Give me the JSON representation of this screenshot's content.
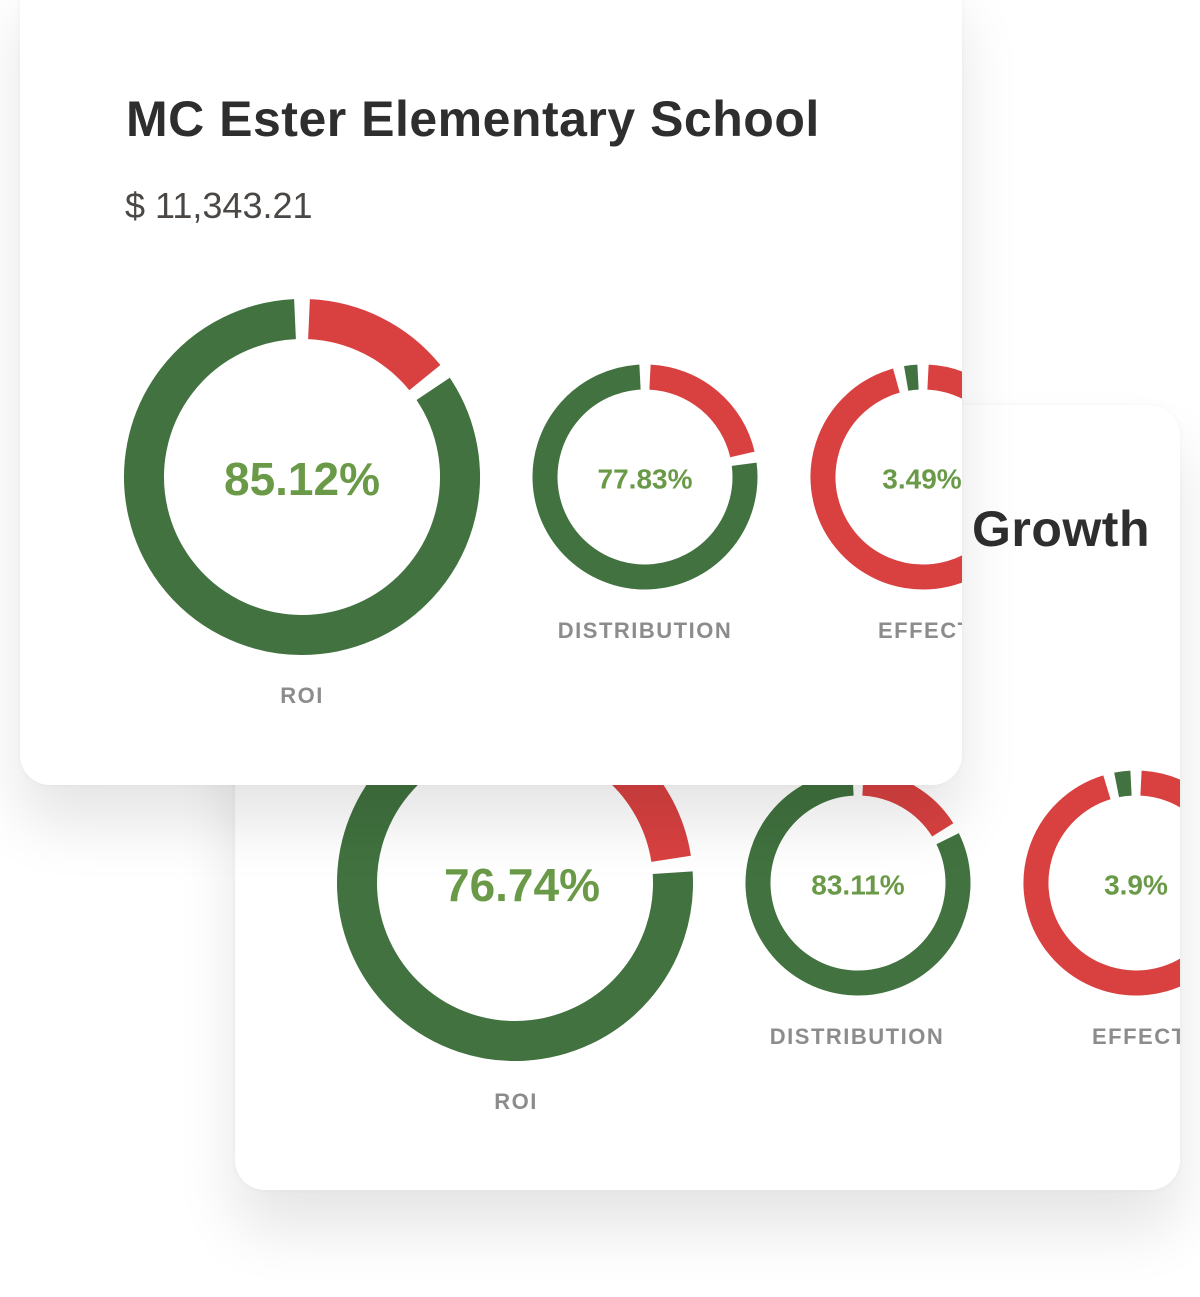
{
  "colors": {
    "good": "#41723f",
    "rest": "#d94141",
    "value_text": "#6a9a48",
    "label": "#8c8c8c"
  },
  "front_card": {
    "title": "MC Ester Elementary School",
    "amount": "$ 11,343.21",
    "metrics": [
      {
        "label": "ROI",
        "value": 85.12,
        "display": "85.12%"
      },
      {
        "label": "DISTRIBUTION",
        "value": 77.83,
        "display": "77.83%"
      },
      {
        "label": "EFFECT",
        "value": 3.49,
        "display": "3.49%"
      }
    ]
  },
  "back_card": {
    "title": "Growth",
    "metrics": [
      {
        "label": "ROI",
        "value": 76.74,
        "display": "76.74%"
      },
      {
        "label": "DISTRIBUTION",
        "value": 83.11,
        "display": "83.11%"
      },
      {
        "label": "EFFECT",
        "value": 3.9,
        "display": "3.9%"
      }
    ]
  }
}
